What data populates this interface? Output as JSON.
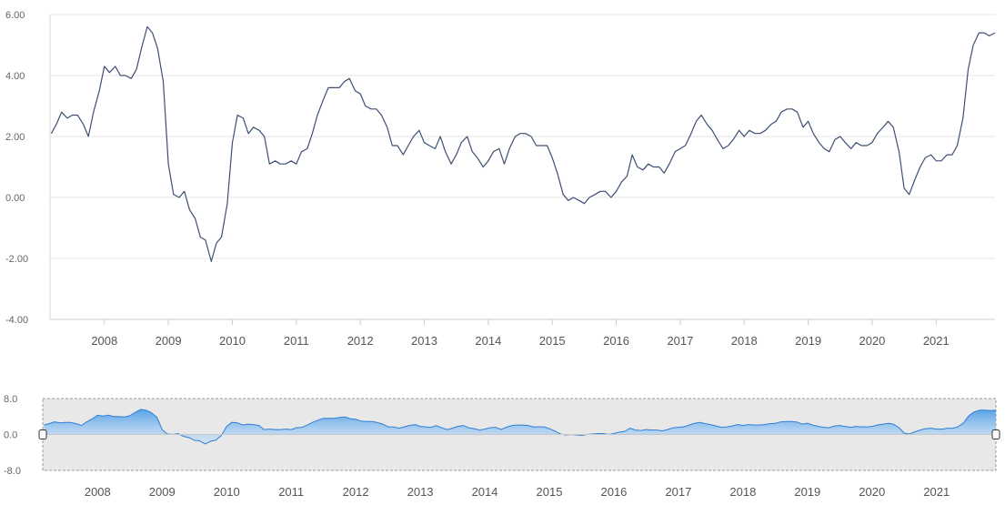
{
  "chart_data": {
    "type": "line",
    "title": "",
    "xlabel": "",
    "ylabel": "",
    "ylim": [
      -4,
      6
    ],
    "y_ticks": [
      "6.00",
      "4.00",
      "2.00",
      "0.00",
      "-2.00",
      "-4.00"
    ],
    "y_tick_values": [
      6,
      4,
      2,
      0,
      -2,
      -4
    ],
    "x_ticks": [
      "2008",
      "2009",
      "2010",
      "2011",
      "2012",
      "2013",
      "2014",
      "2015",
      "2016",
      "2017",
      "2018",
      "2019",
      "2020",
      "2021"
    ],
    "x_tick_values": [
      2008,
      2009,
      2010,
      2011,
      2012,
      2013,
      2014,
      2015,
      2016,
      2017,
      2018,
      2019,
      2020,
      2021
    ],
    "xlim": [
      2007.15,
      2021.92
    ],
    "grid": "horizontal",
    "series": [
      {
        "color": "#3d4f73",
        "x": [
          2007.17,
          2007.25,
          2007.33,
          2007.42,
          2007.5,
          2007.58,
          2007.67,
          2007.75,
          2007.83,
          2007.92,
          2008.0,
          2008.08,
          2008.17,
          2008.25,
          2008.33,
          2008.42,
          2008.5,
          2008.58,
          2008.67,
          2008.75,
          2008.83,
          2008.92,
          2009.0,
          2009.08,
          2009.17,
          2009.25,
          2009.33,
          2009.42,
          2009.5,
          2009.58,
          2009.67,
          2009.75,
          2009.83,
          2009.92,
          2010.0,
          2010.08,
          2010.17,
          2010.25,
          2010.33,
          2010.42,
          2010.5,
          2010.58,
          2010.67,
          2010.75,
          2010.83,
          2010.92,
          2011.0,
          2011.08,
          2011.17,
          2011.25,
          2011.33,
          2011.42,
          2011.5,
          2011.58,
          2011.67,
          2011.75,
          2011.83,
          2011.92,
          2012.0,
          2012.08,
          2012.17,
          2012.25,
          2012.33,
          2012.42,
          2012.5,
          2012.58,
          2012.67,
          2012.75,
          2012.83,
          2012.92,
          2013.0,
          2013.08,
          2013.17,
          2013.25,
          2013.33,
          2013.42,
          2013.5,
          2013.58,
          2013.67,
          2013.75,
          2013.83,
          2013.92,
          2014.0,
          2014.08,
          2014.17,
          2014.25,
          2014.33,
          2014.42,
          2014.5,
          2014.58,
          2014.67,
          2014.75,
          2014.83,
          2014.92,
          2015.0,
          2015.08,
          2015.17,
          2015.25,
          2015.33,
          2015.42,
          2015.5,
          2015.58,
          2015.67,
          2015.75,
          2015.83,
          2015.92,
          2016.0,
          2016.08,
          2016.17,
          2016.25,
          2016.33,
          2016.42,
          2016.5,
          2016.58,
          2016.67,
          2016.75,
          2016.83,
          2016.92,
          2017.0,
          2017.08,
          2017.17,
          2017.25,
          2017.33,
          2017.42,
          2017.5,
          2017.58,
          2017.67,
          2017.75,
          2017.83,
          2017.92,
          2018.0,
          2018.08,
          2018.17,
          2018.25,
          2018.33,
          2018.42,
          2018.5,
          2018.58,
          2018.67,
          2018.75,
          2018.83,
          2018.92,
          2019.0,
          2019.08,
          2019.17,
          2019.25,
          2019.33,
          2019.42,
          2019.5,
          2019.58,
          2019.67,
          2019.75,
          2019.83,
          2019.92,
          2020.0,
          2020.08,
          2020.17,
          2020.25,
          2020.33,
          2020.42,
          2020.5,
          2020.58,
          2020.67,
          2020.75,
          2020.83,
          2020.92,
          2021.0,
          2021.08,
          2021.17,
          2021.25,
          2021.33,
          2021.42,
          2021.5,
          2021.58,
          2021.67,
          2021.75,
          2021.83,
          2021.92
        ],
        "values": [
          2.1,
          2.4,
          2.8,
          2.6,
          2.7,
          2.7,
          2.4,
          2.0,
          2.8,
          3.5,
          4.3,
          4.1,
          4.3,
          4.0,
          4.0,
          3.9,
          4.2,
          4.9,
          5.6,
          5.4,
          4.9,
          3.8,
          1.1,
          0.1,
          0.0,
          0.2,
          -0.4,
          -0.7,
          -1.3,
          -1.4,
          -2.1,
          -1.5,
          -1.3,
          -0.2,
          1.8,
          2.7,
          2.6,
          2.1,
          2.3,
          2.2,
          2.0,
          1.1,
          1.2,
          1.1,
          1.1,
          1.2,
          1.1,
          1.5,
          1.6,
          2.1,
          2.7,
          3.2,
          3.6,
          3.6,
          3.6,
          3.8,
          3.9,
          3.5,
          3.4,
          3.0,
          2.9,
          2.9,
          2.7,
          2.3,
          1.7,
          1.7,
          1.4,
          1.7,
          2.0,
          2.2,
          1.8,
          1.7,
          1.6,
          2.0,
          1.5,
          1.1,
          1.4,
          1.8,
          2.0,
          1.5,
          1.3,
          1.0,
          1.2,
          1.5,
          1.6,
          1.1,
          1.6,
          2.0,
          2.1,
          2.1,
          2.0,
          1.7,
          1.7,
          1.7,
          1.3,
          0.8,
          0.1,
          -0.1,
          0.0,
          -0.1,
          -0.2,
          0.0,
          0.1,
          0.2,
          0.2,
          0.0,
          0.2,
          0.5,
          0.7,
          1.4,
          1.0,
          0.9,
          1.1,
          1.0,
          1.0,
          0.8,
          1.1,
          1.5,
          1.6,
          1.7,
          2.1,
          2.5,
          2.7,
          2.4,
          2.2,
          1.9,
          1.6,
          1.7,
          1.9,
          2.2,
          2.0,
          2.2,
          2.1,
          2.1,
          2.2,
          2.4,
          2.5,
          2.8,
          2.9,
          2.9,
          2.8,
          2.3,
          2.5,
          2.1,
          1.8,
          1.6,
          1.5,
          1.9,
          2.0,
          1.8,
          1.6,
          1.8,
          1.7,
          1.7,
          1.8,
          2.1,
          2.3,
          2.5,
          2.3,
          1.5,
          0.3,
          0.1,
          0.6,
          1.0,
          1.3,
          1.4,
          1.2,
          1.2,
          1.4,
          1.4,
          1.7,
          2.6,
          4.2,
          5.0,
          5.4,
          5.4,
          5.3,
          5.4
        ]
      }
    ],
    "navigator": {
      "y_ticks": [
        "8.0",
        "0.0",
        "-8.0"
      ],
      "y_tick_values": [
        8,
        0,
        -8
      ],
      "ylim": [
        -8,
        8
      ],
      "fill_color": "#4f9ee8",
      "line_color": "#2f7fd4"
    }
  }
}
